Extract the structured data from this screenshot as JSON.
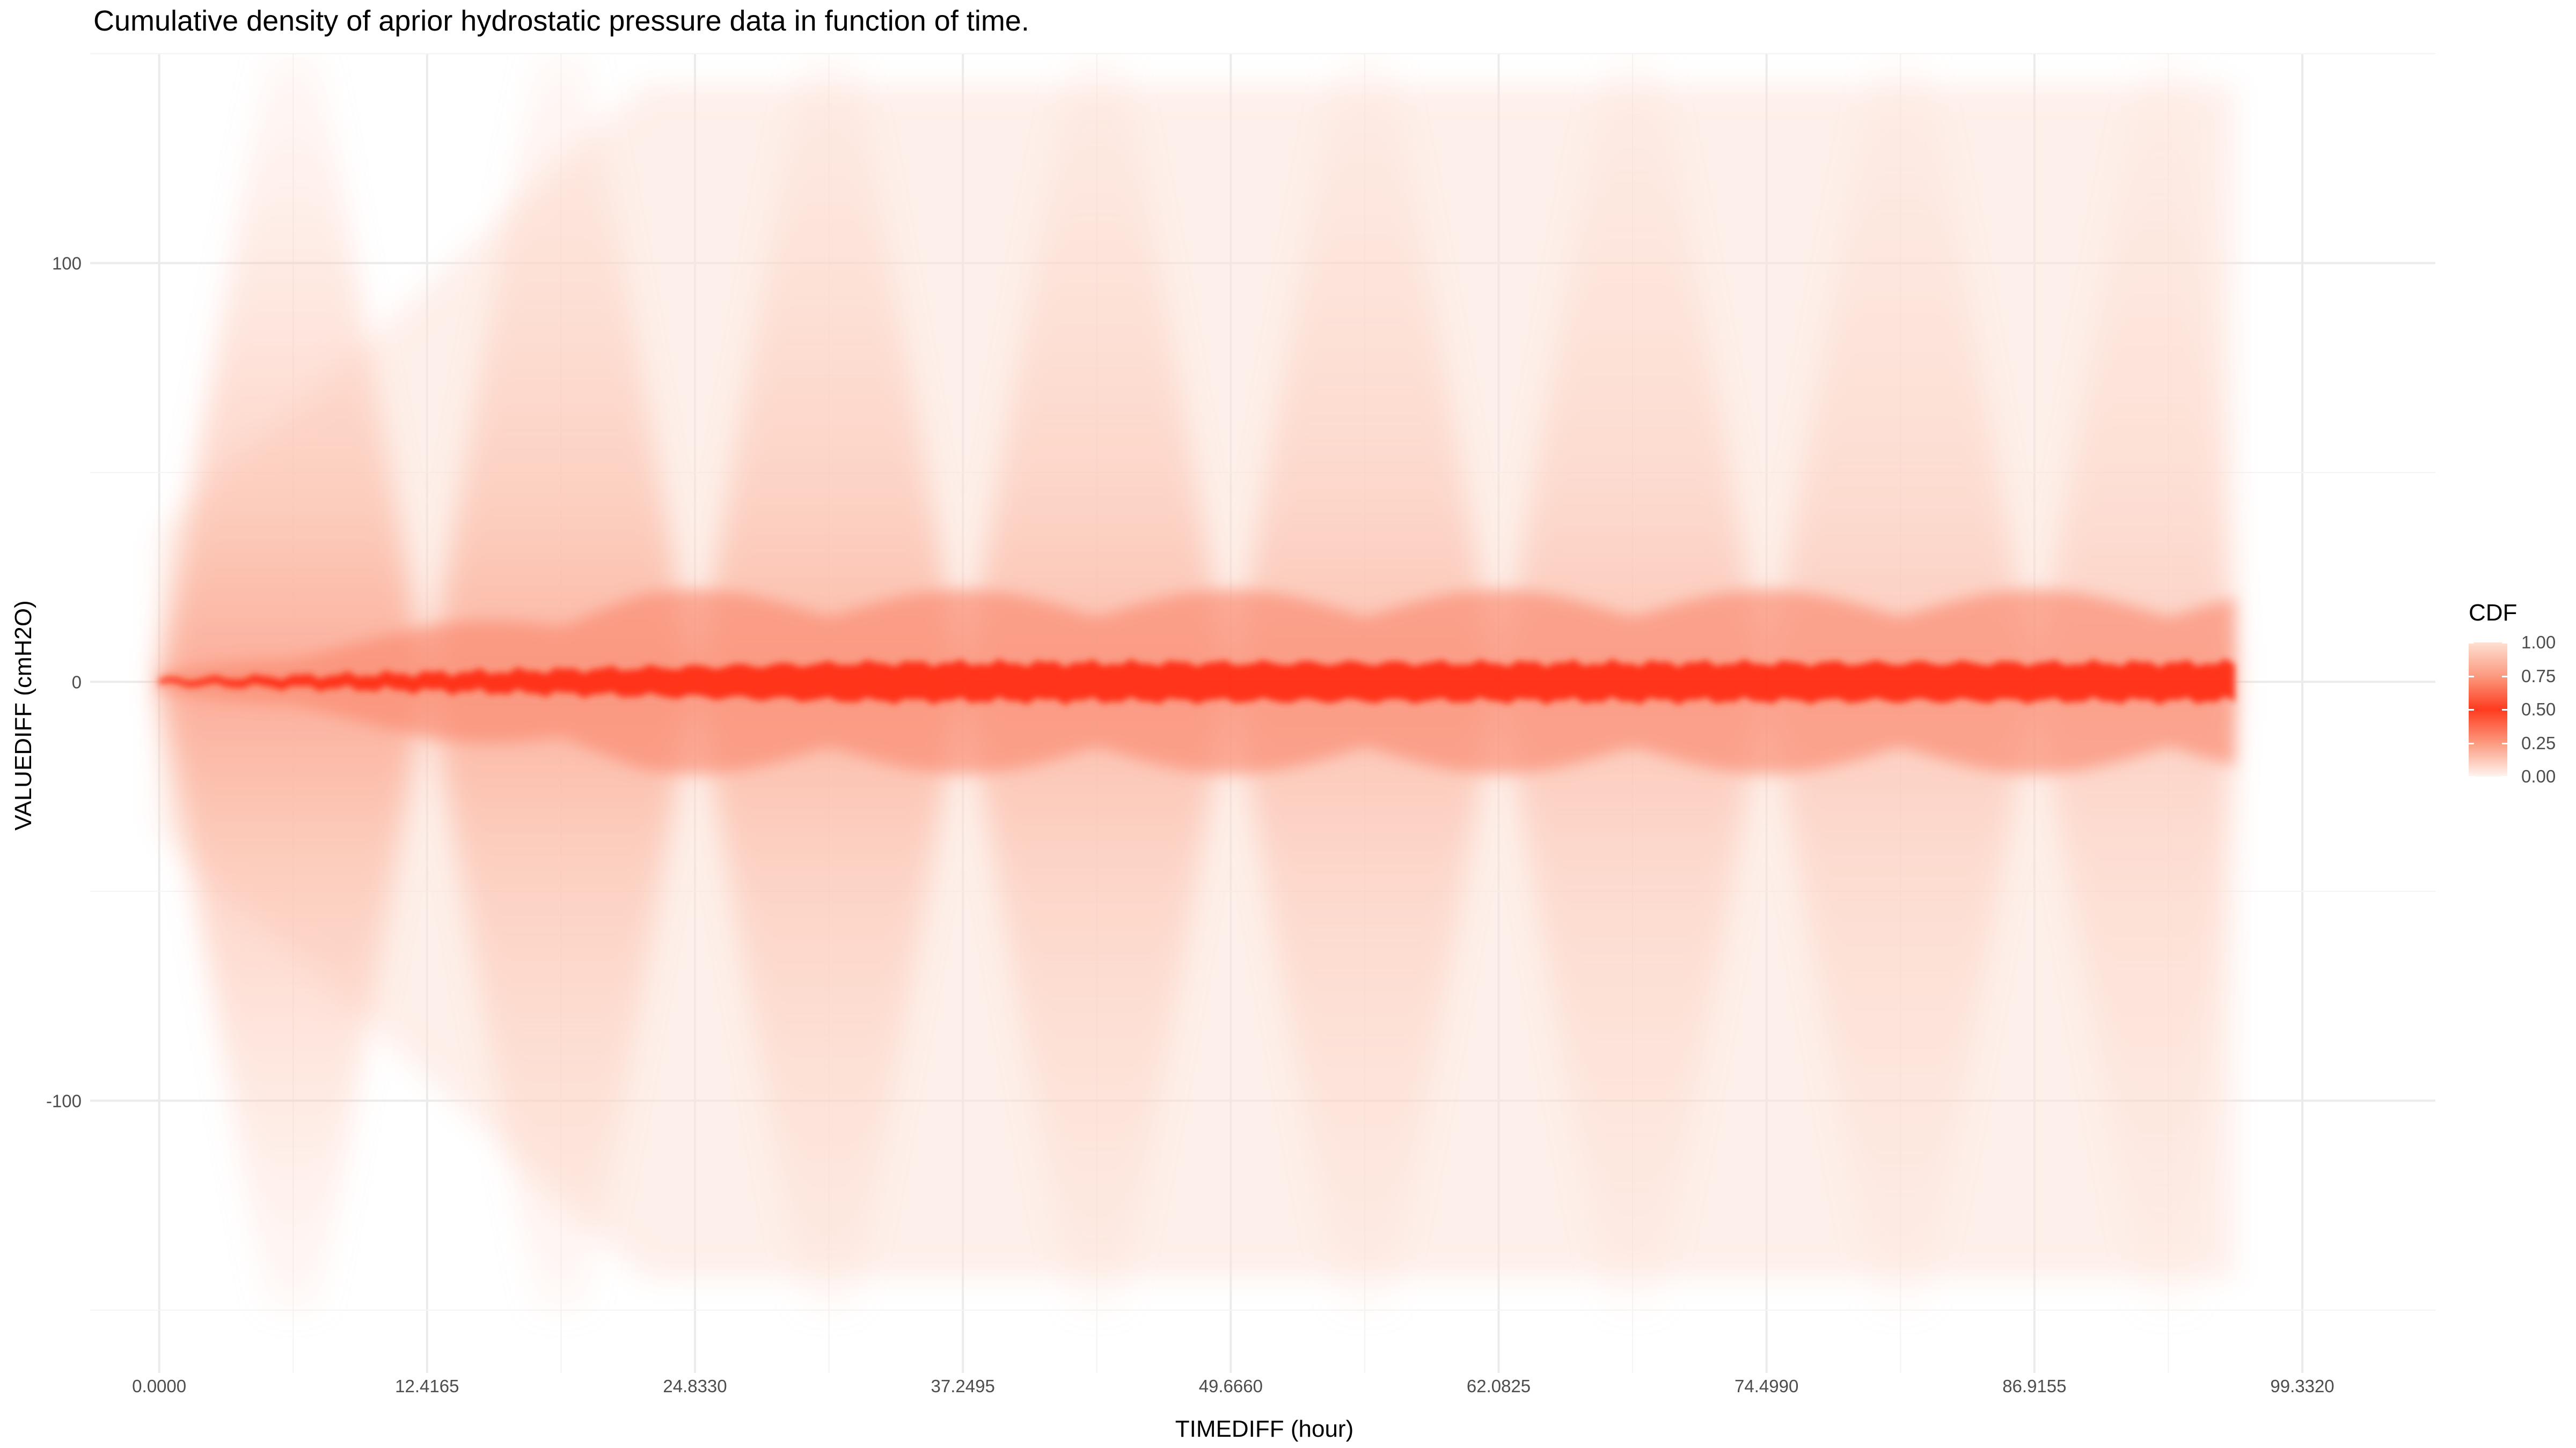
{
  "chart_data": {
    "type": "heatmap",
    "title": "Cumulative density of aprior hydrostatic pressure data in function of time.",
    "xlabel": "TIMEDIFF (hour)",
    "ylabel": "VALUEDIFF (cmH2O)",
    "xlim": [
      -3.2,
      105.5
    ],
    "ylim": [
      -165,
      150
    ],
    "x_ticks": [
      "0.0000",
      "12.4165",
      "24.8330",
      "37.2495",
      "49.6660",
      "62.0825",
      "74.4990",
      "86.9155",
      "99.3320"
    ],
    "x_tick_values": [
      0,
      12.4165,
      24.833,
      37.2495,
      49.666,
      62.0825,
      74.499,
      86.9155,
      99.332
    ],
    "y_ticks": [
      "100",
      "0",
      "-100"
    ],
    "y_tick_values": [
      100,
      0,
      -100
    ],
    "data_x_range": [
      0,
      96.2
    ],
    "data_y_range": [
      -150,
      150
    ],
    "tidal_period_hours": 12.4165,
    "legend": {
      "title": "CDF",
      "ticks": [
        "1.00",
        "0.75",
        "0.50",
        "0.25",
        "0.00"
      ],
      "tick_values": [
        1.0,
        0.75,
        0.5,
        0.25,
        0.0
      ],
      "colors": [
        "#fee0d2",
        "#fb9a7f",
        "#ff3b1f",
        "#fb9a7f",
        "#fff4ef"
      ]
    },
    "colors": {
      "low": "#ffffff",
      "mid": "#ff2a10",
      "grid": "#ebebeb"
    },
    "grid": true
  }
}
